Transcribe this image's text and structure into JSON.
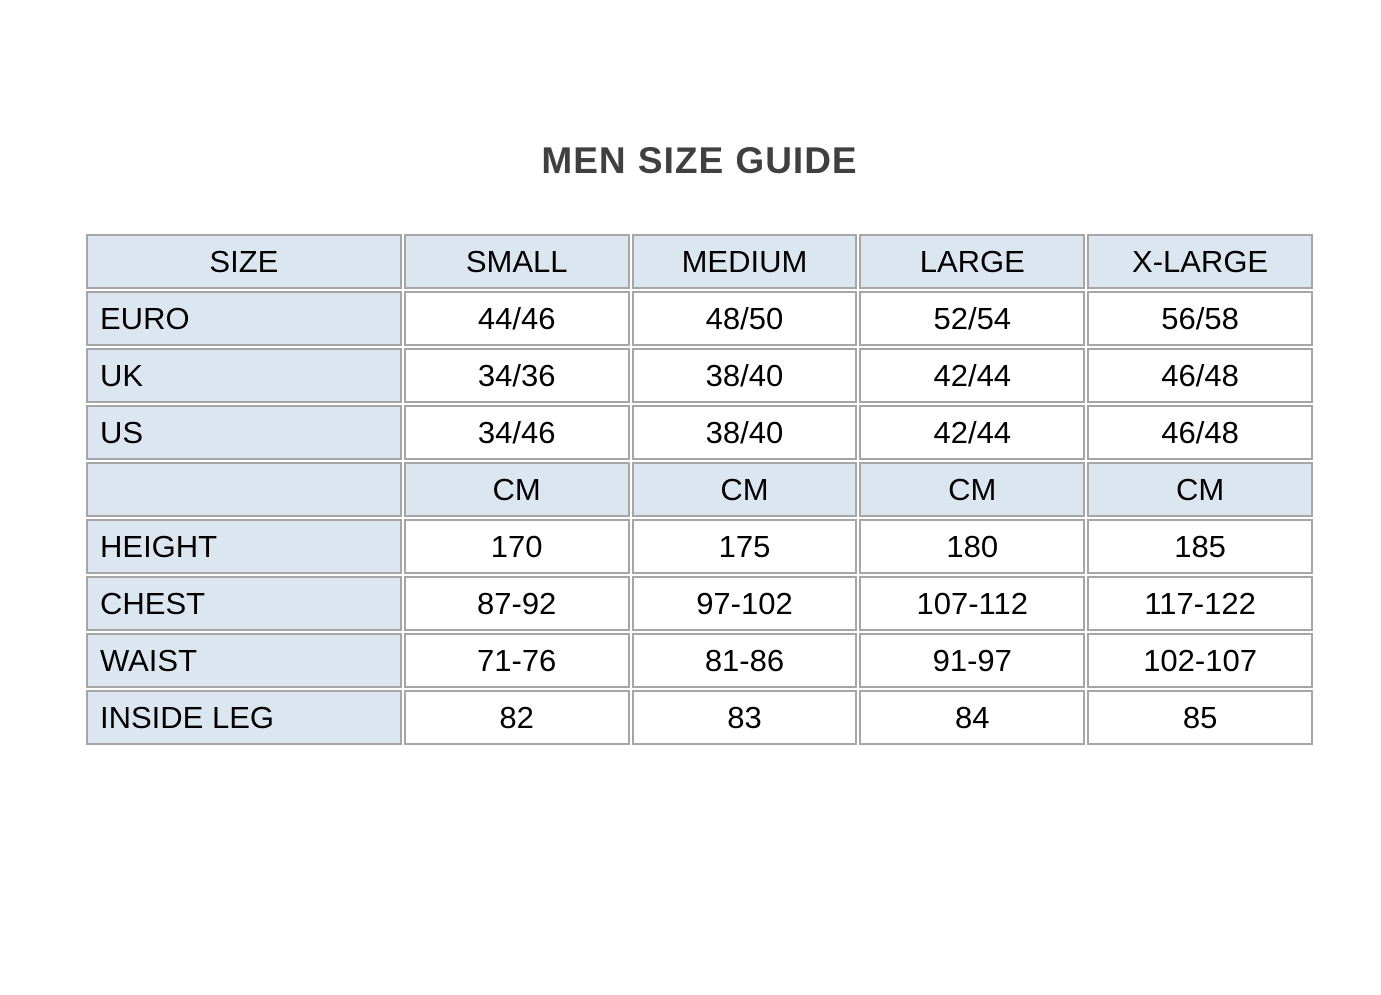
{
  "page": {
    "title": "MEN SIZE GUIDE"
  },
  "colors": {
    "header_bg": "#dce6f1",
    "label_bg": "#dce6f1",
    "unit_row_bg": "#dce6f1",
    "data_cell_bg": "#ffffff",
    "border": "#a6a6a6",
    "title_text": "#404040",
    "cell_text": "#000000"
  },
  "table": {
    "header": [
      "SIZE",
      "SMALL",
      "MEDIUM",
      "LARGE",
      "X-LARGE"
    ],
    "rows": [
      {
        "type": "data",
        "cells": [
          "EURO",
          "44/46",
          "48/50",
          "52/54",
          "56/58"
        ]
      },
      {
        "type": "data",
        "cells": [
          "UK",
          "34/36",
          "38/40",
          "42/44",
          "46/48"
        ]
      },
      {
        "type": "data",
        "cells": [
          "US",
          "34/46",
          "38/40",
          "42/44",
          "46/48"
        ]
      },
      {
        "type": "unit",
        "cells": [
          "",
          "CM",
          "CM",
          "CM",
          "CM"
        ]
      },
      {
        "type": "data",
        "cells": [
          "HEIGHT",
          "170",
          "175",
          "180",
          "185"
        ]
      },
      {
        "type": "data",
        "cells": [
          "CHEST",
          "87-92",
          "97-102",
          "107-112",
          "117-122"
        ]
      },
      {
        "type": "data",
        "cells": [
          "WAIST",
          "71-76",
          "81-86",
          "91-97",
          "102-107"
        ]
      },
      {
        "type": "data",
        "cells": [
          "INSIDE LEG",
          "82",
          "83",
          "84",
          "85"
        ]
      }
    ]
  }
}
